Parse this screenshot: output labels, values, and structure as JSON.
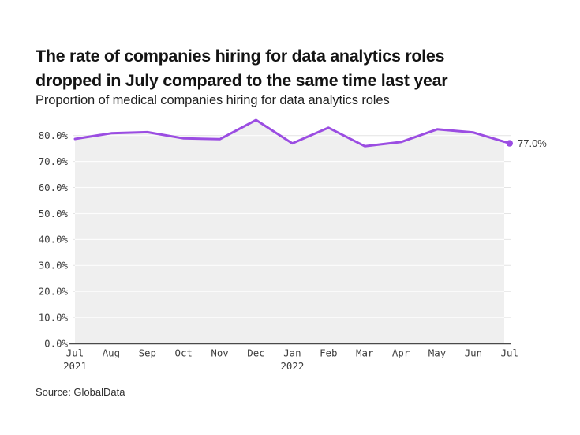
{
  "header": {
    "title_line1": "The rate of companies hiring for data analytics roles",
    "title_line2": "dropped in July compared to the same time last year",
    "subtitle": "Proportion of medical companies hiring for data analytics roles"
  },
  "footer": {
    "source": "Source: GlobalData"
  },
  "chart_data": {
    "type": "line",
    "title": "The rate of companies hiring for data analytics roles dropped in July compared to the same time last year",
    "subtitle": "Proportion of medical companies hiring for data analytics roles",
    "x": [
      "Jul",
      "Aug",
      "Sep",
      "Oct",
      "Nov",
      "Dec",
      "Jan",
      "Feb",
      "Mar",
      "Apr",
      "May",
      "Jun",
      "Jul"
    ],
    "x_year_labels": [
      {
        "index": 0,
        "label": "2021"
      },
      {
        "index": 6,
        "label": "2022"
      }
    ],
    "series": [
      {
        "name": "Proportion of medical companies hiring for data analytics roles",
        "values": [
          78.7,
          80.9,
          81.3,
          78.9,
          78.6,
          86.0,
          77.0,
          83.0,
          75.9,
          77.5,
          82.4,
          81.2,
          77.0
        ]
      }
    ],
    "end_label": "77.0%",
    "y_ticks": [
      0,
      10,
      20,
      30,
      40,
      50,
      60,
      70,
      80
    ],
    "y_tick_labels": [
      "0.0%",
      "10.0%",
      "20.0%",
      "30.0%",
      "40.0%",
      "50.0%",
      "60.0%",
      "70.0%",
      "80.0%"
    ],
    "ylim": [
      0,
      88
    ],
    "grid": "horizontal",
    "legend": "none",
    "source": "Source: GlobalData",
    "colors": {
      "line": "#9b4de2",
      "marker": "#9b4de2",
      "area_fill": "#efefef",
      "gridline": "#e4e4e4",
      "gridline_on_fill": "#ffffff",
      "axis_line": "#4a4a4a",
      "tick_text": "#3d3d3d",
      "end_label_text": "#3a3a3a"
    }
  }
}
